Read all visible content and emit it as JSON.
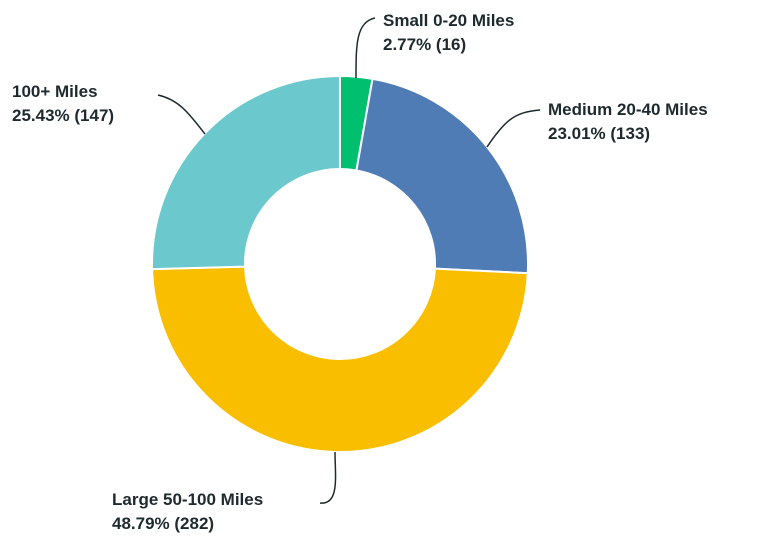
{
  "chart_data": {
    "type": "pie",
    "style": "donut",
    "title": "",
    "slices": [
      {
        "label": "Small 0-20 Miles",
        "value_text": "2.77% (16)",
        "percent": 2.77,
        "count": 16,
        "color": "#00bf6f"
      },
      {
        "label": "Medium 20-40 Miles",
        "value_text": "23.01% (133)",
        "percent": 23.01,
        "count": 133,
        "color": "#507cb6"
      },
      {
        "label": "Large 50-100 Miles",
        "value_text": "48.79% (282)",
        "percent": 48.79,
        "count": 282,
        "color": "#f9be00"
      },
      {
        "label": "100+ Miles",
        "value_text": "25.43% (147)",
        "percent": 25.43,
        "count": 147,
        "color": "#6bc8cd"
      }
    ]
  }
}
